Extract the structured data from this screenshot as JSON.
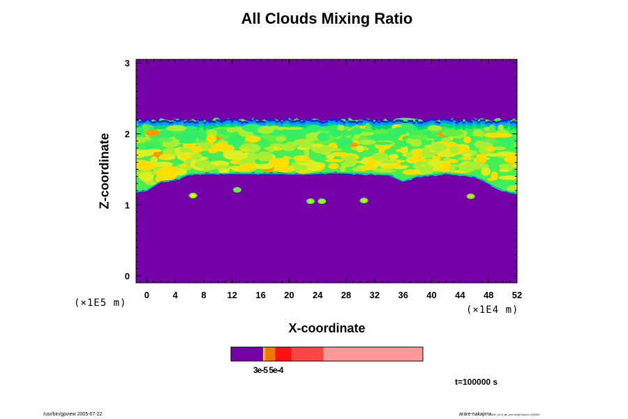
{
  "chart_data": {
    "type": "heatmap",
    "title": "All Clouds Mixing Ratio",
    "xlabel": "X-coordinate",
    "ylabel": "Z-coordinate",
    "x_unit": "(×1E4 m)",
    "y_unit": "(×1E5 m)",
    "xlim": [
      -1.5,
      52
    ],
    "ylim": [
      -0.1,
      3.05
    ],
    "x_ticks": [
      "0",
      "4",
      "8",
      "12",
      "16",
      "20",
      "24",
      "28",
      "32",
      "36",
      "40",
      "44",
      "48",
      "52"
    ],
    "x_tick_values": [
      0,
      4,
      8,
      12,
      16,
      20,
      24,
      28,
      32,
      36,
      40,
      44,
      48,
      52
    ],
    "y_ticks": [
      "0",
      "1",
      "2",
      "3"
    ],
    "y_tick_values": [
      0,
      1,
      2,
      3
    ],
    "grid": false,
    "background_color": "#7500a8",
    "cloud_layer": {
      "z_base_profile": [
        [
          -1.5,
          1.18
        ],
        [
          0,
          1.2
        ],
        [
          2,
          1.33
        ],
        [
          4,
          1.35
        ],
        [
          6,
          1.43
        ],
        [
          10,
          1.44
        ],
        [
          14,
          1.44
        ],
        [
          18,
          1.44
        ],
        [
          22,
          1.43
        ],
        [
          26,
          1.45
        ],
        [
          30,
          1.44
        ],
        [
          34,
          1.42
        ],
        [
          36,
          1.33
        ],
        [
          38,
          1.4
        ],
        [
          42,
          1.44
        ],
        [
          46,
          1.4
        ],
        [
          48,
          1.3
        ],
        [
          50,
          1.2
        ],
        [
          52,
          1.15
        ]
      ],
      "z_top": 2.2,
      "top_fringe_colors": [
        "#0033cc",
        "#0099ff",
        "#00dd66"
      ],
      "interior_colors": [
        "#33ee66",
        "#66ee44",
        "#aaee33",
        "#ddee22",
        "#ffdd00",
        "#ff9900"
      ]
    },
    "isolated_patches": [
      {
        "x": 6.5,
        "z": 1.13,
        "color": "#ffee00"
      },
      {
        "x": 12.7,
        "z": 1.21,
        "color": "#66ee44"
      },
      {
        "x": 23.0,
        "z": 1.05,
        "color": "#aaee33"
      },
      {
        "x": 24.6,
        "z": 1.05,
        "color": "#aaee33"
      },
      {
        "x": 30.5,
        "z": 1.06,
        "color": "#ccee22"
      },
      {
        "x": 45.5,
        "z": 1.12,
        "color": "#ffcc00"
      }
    ],
    "colorbar": {
      "segments": [
        {
          "color": "#7500a8",
          "fraction": 0.167
        },
        {
          "color": "#ffcc00",
          "fraction": 0.007
        },
        {
          "color": "#ff9900",
          "fraction": 0.007
        },
        {
          "color": "#ee7700",
          "fraction": 0.05
        },
        {
          "color": "#ff1111",
          "fraction": 0.083
        },
        {
          "color": "#ff4444",
          "fraction": 0.167
        },
        {
          "color": "#ff9999",
          "fraction": 0.519
        }
      ],
      "tick_labels_text": "3e-5 5e-4"
    }
  },
  "annotations": {
    "time": "t=100000 s",
    "footer_left": "/usr/bin/gpview 2005-07-22",
    "footer_right_main": "arare-nakajima",
    "footer_right_small": "QS_1e-5_all_sne.nc@Cloud,t=100000"
  }
}
